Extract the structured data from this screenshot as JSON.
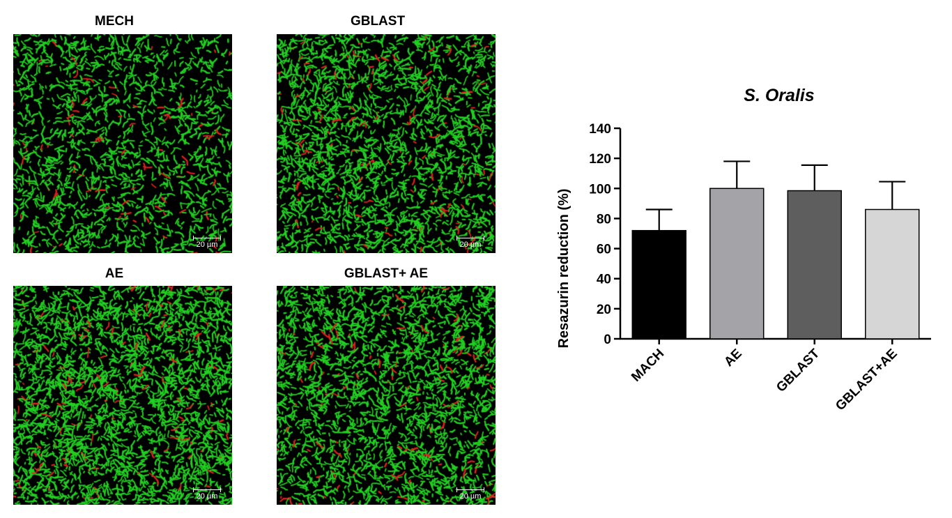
{
  "panels": [
    {
      "title": "MECH",
      "scale_label": "20 µm",
      "density": 1.0
    },
    {
      "title": "GBLAST",
      "scale_label": "20 µm",
      "density": 1.35
    },
    {
      "title": "AE",
      "scale_label": "20 µm",
      "density": 1.7
    },
    {
      "title": "GBLAST+ AE",
      "scale_label": "20 µm",
      "density": 1.45
    }
  ],
  "colors": {
    "live_stain": "#22d022",
    "dead_stain": "#e02020",
    "bar_mach": "#000000",
    "bar_ae": "#a3a3a8",
    "bar_gblast": "#5e5e5e",
    "bar_gblast_ae": "#d6d6d6"
  },
  "chart_data": {
    "type": "bar",
    "title": "S. Oralis",
    "xlabel": "",
    "ylabel": "Resazurin reduction (%)",
    "categories": [
      "MACH",
      "AE",
      "GBLAST",
      "GBLAST+AE"
    ],
    "values": [
      72,
      100,
      98.5,
      86
    ],
    "error": [
      14,
      18,
      17,
      18.5
    ],
    "ylim": [
      0,
      140
    ],
    "yticks": [
      0,
      20,
      40,
      60,
      80,
      100,
      120,
      140
    ],
    "grid": false,
    "error_bars": "upper only"
  }
}
